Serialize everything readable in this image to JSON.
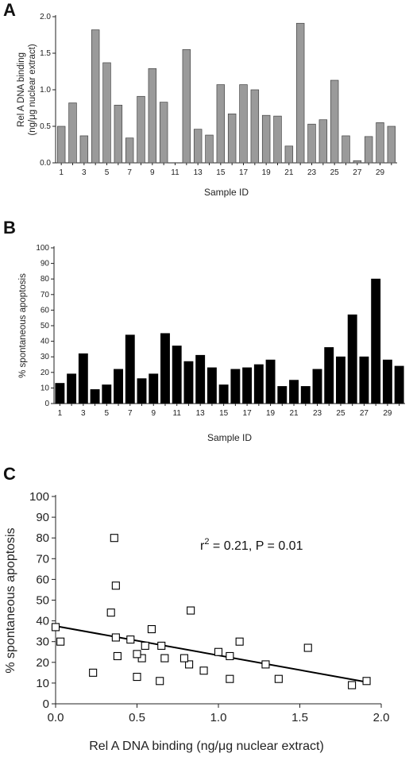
{
  "panels": {
    "a": {
      "letter": "A"
    },
    "b": {
      "letter": "B"
    },
    "c": {
      "letter": "C"
    }
  },
  "chart_data": [
    {
      "id": "A",
      "type": "bar",
      "title": "",
      "xlabel": "Sample ID",
      "ylabel": "Rel A DNA binding (ng/μg nuclear extract)",
      "ylim": [
        0,
        2.0
      ],
      "yticks": [
        "0.0",
        "0.5",
        "1.0",
        "1.5",
        "2.0"
      ],
      "xtick_labels": [
        "1",
        "3",
        "5",
        "7",
        "9",
        "11",
        "13",
        "15",
        "17",
        "19",
        "21",
        "23",
        "25",
        "27",
        "29"
      ],
      "bar_color": "#9a9a9a",
      "categories": [
        "1",
        "2",
        "3",
        "4",
        "5",
        "6",
        "7",
        "8",
        "9",
        "10",
        "11",
        "12",
        "13",
        "14",
        "15",
        "16",
        "17",
        "18",
        "19",
        "20",
        "21",
        "22",
        "23",
        "24",
        "25",
        "26",
        "27",
        "28",
        "29",
        "30"
      ],
      "values": [
        0.5,
        0.82,
        0.37,
        1.82,
        1.37,
        0.79,
        0.34,
        0.91,
        1.29,
        0.83,
        0.0,
        1.55,
        0.46,
        0.38,
        1.07,
        0.67,
        1.07,
        1.0,
        0.65,
        0.64,
        0.23,
        1.91,
        0.53,
        0.59,
        1.13,
        0.37,
        0.03,
        0.36,
        0.55,
        0.5
      ]
    },
    {
      "id": "B",
      "type": "bar",
      "title": "",
      "xlabel": "Sample ID",
      "ylabel": "% spontaneous apoptosis",
      "ylim": [
        0,
        100
      ],
      "yticks": [
        "0",
        "10",
        "20",
        "30",
        "40",
        "50",
        "60",
        "70",
        "80",
        "90",
        "100"
      ],
      "xtick_labels": [
        "1",
        "3",
        "5",
        "7",
        "9",
        "11",
        "13",
        "15",
        "17",
        "19",
        "21",
        "23",
        "25",
        "27",
        "29"
      ],
      "bar_color": "#000000",
      "categories": [
        "1",
        "2",
        "3",
        "4",
        "5",
        "6",
        "7",
        "8",
        "9",
        "10",
        "11",
        "12",
        "13",
        "14",
        "15",
        "16",
        "17",
        "18",
        "19",
        "20",
        "21",
        "22",
        "23",
        "24",
        "25",
        "26",
        "27",
        "28",
        "29",
        "30"
      ],
      "values": [
        13,
        19,
        32,
        9,
        12,
        22,
        44,
        16,
        19,
        45,
        37,
        27,
        31,
        23,
        12,
        22,
        23,
        25,
        28,
        11,
        15,
        11,
        22,
        36,
        30,
        57,
        30,
        80,
        28,
        24
      ]
    },
    {
      "id": "C",
      "type": "scatter",
      "title": "",
      "xlabel": "Rel A DNA binding (ng/μg nuclear extract)",
      "ylabel": "% spontaneous apoptosis",
      "xlim": [
        0,
        2.0
      ],
      "ylim": [
        0,
        100
      ],
      "xticks": [
        "0.0",
        "0.5",
        "1.0",
        "1.5",
        "2.0"
      ],
      "yticks": [
        "0",
        "10",
        "20",
        "30",
        "40",
        "50",
        "60",
        "70",
        "80",
        "90",
        "100"
      ],
      "annotation": {
        "prefix": "r",
        "sup": "2",
        "suffix": " = 0.21, P = 0.01"
      },
      "fit_line": {
        "x": [
          0,
          1.91
        ],
        "y": [
          37.5,
          10.5
        ]
      },
      "points": [
        [
          0.5,
          13
        ],
        [
          0.82,
          19
        ],
        [
          0.37,
          32
        ],
        [
          1.82,
          9
        ],
        [
          1.37,
          12
        ],
        [
          0.79,
          22
        ],
        [
          0.34,
          44
        ],
        [
          0.91,
          16
        ],
        [
          1.29,
          19
        ],
        [
          0.83,
          45
        ],
        [
          0.0,
          37
        ],
        [
          1.55,
          27
        ],
        [
          0.46,
          31
        ],
        [
          0.38,
          23
        ],
        [
          1.07,
          12
        ],
        [
          0.67,
          22
        ],
        [
          1.07,
          23
        ],
        [
          1.0,
          25
        ],
        [
          0.65,
          28
        ],
        [
          0.64,
          11
        ],
        [
          0.23,
          15
        ],
        [
          1.91,
          11
        ],
        [
          0.53,
          22
        ],
        [
          0.59,
          36
        ],
        [
          1.13,
          30
        ],
        [
          0.37,
          57
        ],
        [
          0.03,
          30
        ],
        [
          0.36,
          80
        ],
        [
          0.55,
          28
        ],
        [
          0.5,
          24
        ]
      ]
    }
  ]
}
